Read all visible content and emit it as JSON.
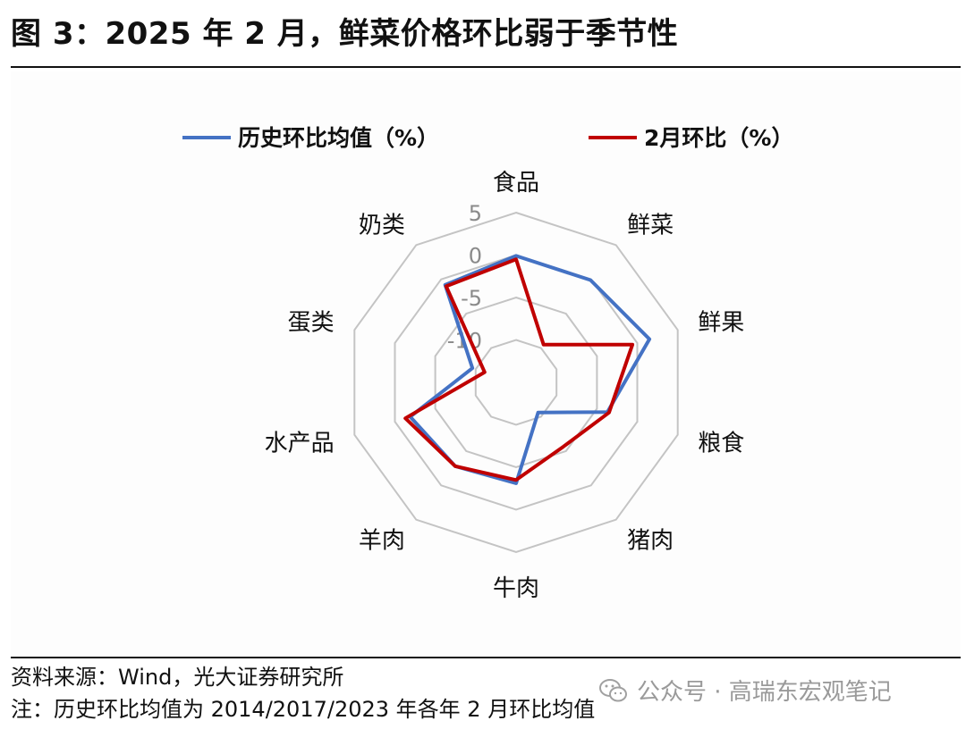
{
  "title": "图 3：2025 年 2 月，鲜菜价格环比弱于季节性",
  "source": "资料来源：Wind，光大证券研究所",
  "note": "注：历史环比均值为 2014/2017/2023 年各年 2 月环比均值",
  "watermark": {
    "icon": "wechat-icon",
    "text": "公众号 · 高瑞东宏观笔记"
  },
  "chart_data": {
    "type": "radar",
    "categories": [
      "食品",
      "鲜菜",
      "鲜果",
      "粮食",
      "猪肉",
      "牛肉",
      "羊肉",
      "水产品",
      "蛋类",
      "奶类"
    ],
    "rlim": [
      -15,
      5
    ],
    "rticks": [
      5,
      0,
      -5,
      -10
    ],
    "series": [
      {
        "name": "历史环比均值（%）",
        "color": "#4472c4",
        "values": [
          -0.1,
          -0.1,
          1.5,
          -3.7,
          -10.6,
          -3.1,
          -2.8,
          -1.9,
          -9.6,
          -0.8
        ]
      },
      {
        "name": "2月环比（%）",
        "color": "#c00000",
        "values": [
          -0.5,
          -9.5,
          -0.6,
          -3.5,
          -5.6,
          -3.5,
          -2.8,
          -1.3,
          -11.1,
          -1.0
        ]
      }
    ],
    "grid": true,
    "legend": "top"
  }
}
